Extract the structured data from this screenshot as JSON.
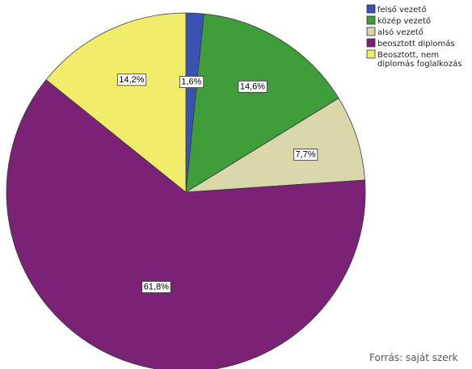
{
  "chart_data": {
    "type": "pie",
    "title": "",
    "slices": [
      {
        "label": "felső vezető",
        "value": 1.6,
        "value_label": "1,6%",
        "color": "#3a52b4"
      },
      {
        "label": "közép vezető",
        "value": 14.6,
        "value_label": "14,6%",
        "color": "#3f9e3a"
      },
      {
        "label": "alsó vezető",
        "value": 7.7,
        "value_label": "7,7%",
        "color": "#d9d6aa"
      },
      {
        "label": "beosztott diplomás",
        "value": 61.8,
        "value_label": "61,8%",
        "color": "#7b2276"
      },
      {
        "label": "Beosztott, nem diplomás foglalkozás",
        "value": 14.2,
        "value_label": "14,2%",
        "color": "#f2ec6b"
      }
    ],
    "legend": {
      "placement": "top-right",
      "entries": [
        {
          "line1": "felső vezető",
          "line2": ""
        },
        {
          "line1": "közép vezető",
          "line2": ""
        },
        {
          "line1": "alsó vezető",
          "line2": ""
        },
        {
          "line1": "beosztott diplomás",
          "line2": ""
        },
        {
          "line1": "Beosztott, nem",
          "line2": "diplomás foglalkozás"
        }
      ]
    },
    "start_angle_deg": 0,
    "direction": "clockwise"
  },
  "source_note": "Forrás: saját szerk"
}
